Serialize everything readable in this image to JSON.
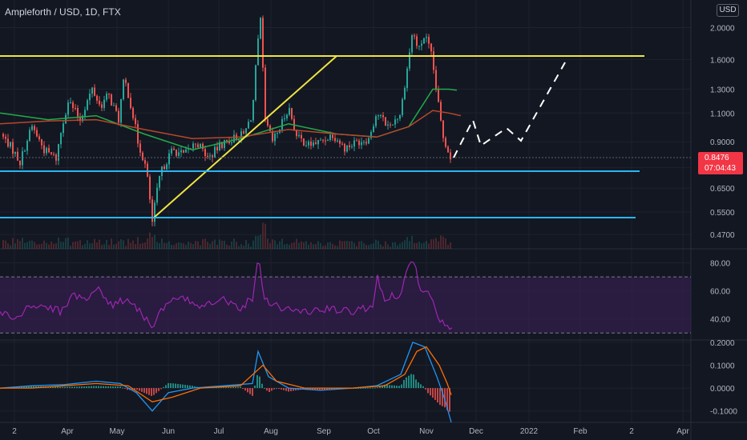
{
  "header": {
    "title": "Ampleforth / USD, 1D, FTX",
    "currency_badge": "USD"
  },
  "price_tag": {
    "price": "0.8476",
    "countdown": "07:04:43",
    "color": "#f23645"
  },
  "colors": {
    "background": "#131722",
    "up": "#26a69a",
    "down": "#ef5350",
    "trendline_yellow": "#f0e442",
    "support_cyan": "#29b6f6",
    "ma_green": "#22ab4b",
    "ma_red": "#b7472a",
    "rsi_line": "#9c27b0",
    "rsi_band": "#3b1e55",
    "macd_line": "#2196f3",
    "signal_line": "#ff6d00",
    "projection": "#ffffff"
  },
  "time_axis": [
    "2",
    "Apr",
    "May",
    "Jun",
    "Jul",
    "Aug",
    "Sep",
    "Oct",
    "Nov",
    "Dec",
    "2022",
    "Feb",
    "2",
    "Apr"
  ],
  "chart_data": [
    {
      "type": "line",
      "panel": "price",
      "title": "",
      "y_scale": "log",
      "yticks": [
        "2.0000",
        "1.6000",
        "1.3000",
        "1.1000",
        "0.9000",
        "0.7500",
        "0.6500",
        "0.5500",
        "0.4700"
      ],
      "tick_values": [
        2.0,
        1.6,
        1.3,
        1.1,
        0.9,
        0.75,
        0.65,
        0.55,
        0.47
      ],
      "ylim": [
        0.43,
        2.4
      ],
      "last_price": 0.8476,
      "series": [
        {
          "values_by_x": [
            [
              0,
              0.95
            ],
            [
              12,
              0.88
            ],
            [
              25,
              0.78
            ],
            [
              40,
              1.0
            ],
            [
              55,
              0.85
            ],
            [
              70,
              0.8
            ],
            [
              85,
              1.2
            ],
            [
              100,
              1.05
            ],
            [
              115,
              1.3
            ],
            [
              125,
              1.15
            ],
            [
              135,
              1.25
            ],
            [
              148,
              1.05
            ],
            [
              155,
              1.4
            ],
            [
              162,
              1.2
            ],
            [
              172,
              0.9
            ],
            [
              182,
              0.75
            ],
            [
              190,
              0.51
            ],
            [
              200,
              0.72
            ],
            [
              215,
              0.85
            ],
            [
              230,
              0.82
            ],
            [
              245,
              0.9
            ],
            [
              260,
              0.8
            ],
            [
              275,
              0.88
            ],
            [
              290,
              0.92
            ],
            [
              305,
              0.95
            ],
            [
              315,
              1.1
            ],
            [
              320,
              1.6
            ],
            [
              325,
              2.1
            ],
            [
              330,
              1.05
            ],
            [
              340,
              0.9
            ],
            [
              350,
              1.0
            ],
            [
              360,
              1.15
            ],
            [
              370,
              0.93
            ],
            [
              385,
              0.88
            ],
            [
              400,
              0.9
            ],
            [
              415,
              0.95
            ],
            [
              430,
              0.86
            ],
            [
              445,
              0.9
            ],
            [
              460,
              0.92
            ],
            [
              470,
              1.1
            ],
            [
              485,
              1.0
            ],
            [
              500,
              1.1
            ],
            [
              508,
              1.5
            ],
            [
              515,
              1.95
            ],
            [
              522,
              1.7
            ],
            [
              530,
              1.9
            ],
            [
              538,
              1.65
            ],
            [
              546,
              1.2
            ],
            [
              552,
              0.95
            ],
            [
              558,
              0.86
            ],
            [
              563,
              0.8
            ]
          ]
        },
        {
          "values_by_x": [
            [
              0,
              1.1
            ],
            [
              60,
              1.05
            ],
            [
              120,
              1.08
            ],
            [
              180,
              0.95
            ],
            [
              240,
              0.85
            ],
            [
              300,
              0.92
            ],
            [
              360,
              1.02
            ],
            [
              420,
              0.95
            ],
            [
              470,
              0.93
            ],
            [
              510,
              1.0
            ],
            [
              540,
              1.3
            ],
            [
              560,
              1.3
            ],
            [
              570,
              1.29
            ]
          ]
        },
        {
          "values_by_x": [
            [
              0,
              1.02
            ],
            [
              60,
              1.04
            ],
            [
              120,
              1.05
            ],
            [
              180,
              0.98
            ],
            [
              240,
              0.92
            ],
            [
              300,
              0.93
            ],
            [
              360,
              0.98
            ],
            [
              420,
              0.95
            ],
            [
              470,
              0.93
            ],
            [
              510,
              1.0
            ],
            [
              540,
              1.12
            ],
            [
              560,
              1.1
            ],
            [
              575,
              1.08
            ]
          ]
        }
      ]
    },
    {
      "type": "line",
      "panel": "rsi",
      "title": "",
      "yticks": [
        "80.00",
        "60.00",
        "40.00"
      ],
      "tick_values": [
        80,
        60,
        40
      ],
      "ylim": [
        25,
        90
      ],
      "band": [
        30,
        70
      ],
      "series": [
        {
          "values_by_x": [
            [
              0,
              45
            ],
            [
              20,
              40
            ],
            [
              40,
              50
            ],
            [
              60,
              48
            ],
            [
              80,
              45
            ],
            [
              90,
              58
            ],
            [
              110,
              55
            ],
            [
              120,
              62
            ],
            [
              140,
              50
            ],
            [
              160,
              55
            ],
            [
              175,
              45
            ],
            [
              190,
              35
            ],
            [
              200,
              45
            ],
            [
              220,
              55
            ],
            [
              250,
              50
            ],
            [
              275,
              55
            ],
            [
              300,
              48
            ],
            [
              315,
              55
            ],
            [
              322,
              85
            ],
            [
              330,
              55
            ],
            [
              350,
              48
            ],
            [
              380,
              45
            ],
            [
              410,
              47
            ],
            [
              440,
              45
            ],
            [
              465,
              50
            ],
            [
              470,
              70
            ],
            [
              480,
              55
            ],
            [
              500,
              58
            ],
            [
              510,
              78
            ],
            [
              515,
              85
            ],
            [
              525,
              60
            ],
            [
              540,
              55
            ],
            [
              548,
              38
            ],
            [
              560,
              34
            ],
            [
              565,
              33
            ]
          ]
        }
      ]
    },
    {
      "type": "bar",
      "panel": "macd",
      "title": "",
      "yticks": [
        "0.2000",
        "0.1000",
        "0.0000",
        "-0.1000"
      ],
      "tick_values": [
        0.2,
        0.1,
        0.0,
        -0.1
      ],
      "ylim": [
        -0.15,
        0.21
      ],
      "series": [
        {
          "values_by_x": [
            [
              0,
              0.0
            ],
            [
              40,
              0.01
            ],
            [
              80,
              0.015
            ],
            [
              120,
              0.03
            ],
            [
              150,
              0.02
            ],
            [
              170,
              -0.02
            ],
            [
              190,
              -0.1
            ],
            [
              210,
              -0.02
            ],
            [
              240,
              0.0
            ],
            [
              280,
              0.01
            ],
            [
              315,
              0.02
            ],
            [
              322,
              0.16
            ],
            [
              335,
              0.05
            ],
            [
              360,
              0.0
            ],
            [
              400,
              -0.01
            ],
            [
              440,
              0.0
            ],
            [
              470,
              0.01
            ],
            [
              500,
              0.06
            ],
            [
              515,
              0.2
            ],
            [
              530,
              0.18
            ],
            [
              545,
              0.05
            ],
            [
              555,
              -0.05
            ],
            [
              563,
              -0.15
            ]
          ]
        },
        {
          "values_by_x": [
            [
              0,
              0.0
            ],
            [
              40,
              0.0
            ],
            [
              80,
              0.01
            ],
            [
              120,
              0.02
            ],
            [
              160,
              0.01
            ],
            [
              190,
              -0.06
            ],
            [
              215,
              -0.04
            ],
            [
              250,
              0.0
            ],
            [
              300,
              0.01
            ],
            [
              328,
              0.1
            ],
            [
              345,
              0.03
            ],
            [
              380,
              0.0
            ],
            [
              440,
              0.0
            ],
            [
              480,
              0.01
            ],
            [
              505,
              0.06
            ],
            [
              520,
              0.16
            ],
            [
              532,
              0.18
            ],
            [
              548,
              0.1
            ],
            [
              558,
              0.02
            ],
            [
              563,
              -0.03
            ]
          ]
        }
      ]
    }
  ]
}
